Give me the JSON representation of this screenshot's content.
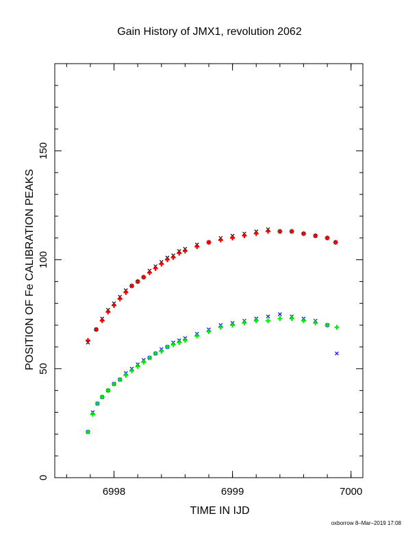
{
  "title": "Gain History of JMX1, revolution 2062",
  "credit": "oxborrow  8–Mar–2019 17:08",
  "chart_data": {
    "type": "scatter",
    "xlabel": "TIME IN IJD",
    "ylabel": "POSITION OF Fe CALIBRATION PEAKS",
    "xlim": [
      6997.5,
      7000.1
    ],
    "ylim": [
      0,
      190
    ],
    "xticks": [
      6998,
      6999,
      7000
    ],
    "yticks": [
      0,
      50,
      100,
      150
    ],
    "grid": false,
    "series": [
      {
        "color": "#000000",
        "marker": "x",
        "x": [
          6997.78,
          6997.85,
          6997.9,
          6997.95,
          6998.0,
          6998.05,
          6998.1,
          6998.15,
          6998.2,
          6998.25,
          6998.3,
          6998.35,
          6998.4,
          6998.45,
          6998.5,
          6998.55,
          6998.6,
          6998.7,
          6998.8,
          6998.9,
          6999.0,
          6999.1,
          6999.2,
          6999.3,
          6999.4,
          6999.5,
          6999.6,
          6999.7,
          6999.8,
          6999.87
        ],
        "y": [
          62,
          68,
          73,
          77,
          80,
          83,
          86,
          88,
          90,
          92,
          95,
          97,
          99,
          101,
          102,
          104,
          105,
          107,
          108,
          110,
          111,
          112,
          113,
          114,
          113,
          113,
          112,
          111,
          110,
          108
        ]
      },
      {
        "color": "#ff0000",
        "marker": "+",
        "x": [
          6997.78,
          6997.85,
          6997.9,
          6997.95,
          6998.0,
          6998.05,
          6998.1,
          6998.15,
          6998.2,
          6998.25,
          6998.3,
          6998.35,
          6998.4,
          6998.45,
          6998.5,
          6998.55,
          6998.6,
          6998.7,
          6998.8,
          6998.9,
          6999.0,
          6999.1,
          6999.2,
          6999.3,
          6999.4,
          6999.5,
          6999.6,
          6999.7,
          6999.8,
          6999.87
        ],
        "y": [
          63,
          68,
          72,
          76,
          79,
          82,
          85,
          88,
          90,
          92,
          94,
          96,
          98,
          100,
          101,
          103,
          104,
          106,
          108,
          109,
          110,
          111,
          112,
          113,
          113,
          113,
          112,
          111,
          110,
          108
        ]
      },
      {
        "color": "#0000ff",
        "marker": "x",
        "x": [
          6997.78,
          6997.82,
          6997.86,
          6997.9,
          6997.95,
          6998.0,
          6998.05,
          6998.1,
          6998.15,
          6998.2,
          6998.25,
          6998.3,
          6998.35,
          6998.4,
          6998.45,
          6998.5,
          6998.55,
          6998.6,
          6998.7,
          6998.8,
          6998.9,
          6999.0,
          6999.1,
          6999.2,
          6999.3,
          6999.4,
          6999.5,
          6999.6,
          6999.7,
          6999.8,
          6999.88
        ],
        "y": [
          21,
          30,
          34,
          37,
          40,
          43,
          45,
          48,
          50,
          52,
          54,
          55,
          57,
          59,
          60,
          62,
          63,
          64,
          66,
          68,
          70,
          71,
          72,
          73,
          74,
          75,
          74,
          73,
          72,
          70,
          57
        ]
      },
      {
        "color": "#00ee00",
        "marker": "+",
        "x": [
          6997.78,
          6997.82,
          6997.86,
          6997.9,
          6997.95,
          6998.0,
          6998.05,
          6998.1,
          6998.15,
          6998.2,
          6998.25,
          6998.3,
          6998.35,
          6998.4,
          6998.45,
          6998.5,
          6998.55,
          6998.6,
          6998.7,
          6998.8,
          6998.9,
          6999.0,
          6999.1,
          6999.2,
          6999.3,
          6999.4,
          6999.5,
          6999.6,
          6999.7,
          6999.8,
          6999.88
        ],
        "y": [
          21,
          29,
          34,
          37,
          40,
          43,
          45,
          47,
          49,
          51,
          53,
          55,
          57,
          58,
          60,
          61,
          62,
          63,
          65,
          67,
          69,
          70,
          71,
          72,
          72,
          73,
          73,
          72,
          71,
          70,
          69
        ]
      }
    ]
  }
}
